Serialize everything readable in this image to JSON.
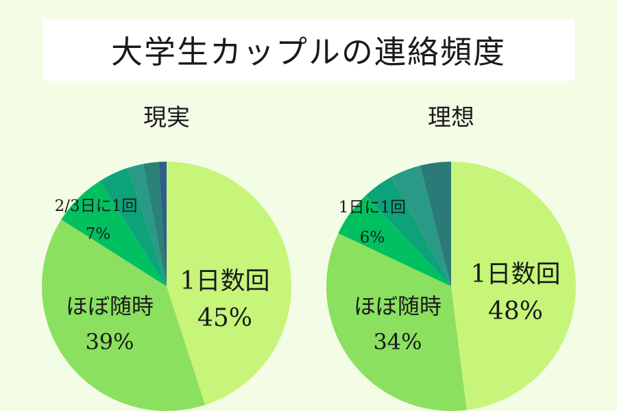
{
  "title": "大学生カップルの連絡頻度",
  "colors": {
    "background": "#f3fce5",
    "slices": [
      "#c6f57a",
      "#8be060",
      "#00c060",
      "#0ca27a",
      "#2a9a86",
      "#2b8078",
      "#2d5f8a"
    ],
    "ideal_slices": [
      "#c6f57a",
      "#8be060",
      "#00c060",
      "#0ca27a",
      "#2a9a86",
      "#2b7a78"
    ]
  },
  "chart_data": [
    {
      "type": "pie",
      "title": "現実",
      "slices": [
        {
          "label": "1日数回",
          "value": 45,
          "value_text": "45%"
        },
        {
          "label": "ほぼ随時",
          "value": 39,
          "value_text": "39%"
        },
        {
          "label": "2/3日に1回",
          "value": 7,
          "value_text": "7%"
        },
        {
          "label": "",
          "value": 4
        },
        {
          "label": "",
          "value": 2
        },
        {
          "label": "",
          "value": 2
        },
        {
          "label": "",
          "value": 1
        }
      ]
    },
    {
      "type": "pie",
      "title": "理想",
      "slices": [
        {
          "label": "1日数回",
          "value": 48,
          "value_text": "48%"
        },
        {
          "label": "ほぼ随時",
          "value": 34,
          "value_text": "34%"
        },
        {
          "label": "1日に1回",
          "value": 6,
          "value_text": "6%"
        },
        {
          "label": "",
          "value": 4
        },
        {
          "label": "",
          "value": 4
        },
        {
          "label": "",
          "value": 4
        }
      ]
    }
  ]
}
